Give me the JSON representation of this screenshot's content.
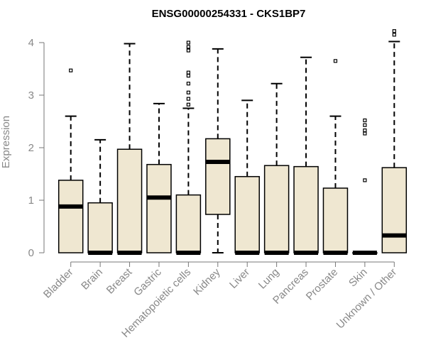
{
  "chart_data": {
    "type": "boxplot",
    "title": "ENSG00000254331 - CKS1BP7",
    "xlabel": "",
    "ylabel": "Expression",
    "ylim": [
      0,
      4.2
    ],
    "yticks": [
      0,
      1,
      2,
      3,
      4
    ],
    "grid": false,
    "legend": "none",
    "colors": {
      "box_fill": "#efe7d1",
      "stroke": "#000000",
      "axis": "#777777",
      "text": "#888888"
    },
    "categories": [
      "Bladder",
      "Brain",
      "Breast",
      "Gastric",
      "Hematopoietic cells",
      "Kidney",
      "Liver",
      "Lung",
      "Pancreas",
      "Prostate",
      "Skin",
      "Unknown / Other"
    ],
    "boxes": [
      {
        "category": "Bladder",
        "whisker_low": 0,
        "q1": 0,
        "median": 0.88,
        "q3": 1.38,
        "whisker_high": 2.6,
        "outliers": [
          3.47
        ]
      },
      {
        "category": "Brain",
        "whisker_low": 0,
        "q1": 0,
        "median": 0,
        "q3": 0.95,
        "whisker_high": 2.15,
        "outliers": []
      },
      {
        "category": "Breast",
        "whisker_low": 0,
        "q1": 0,
        "median": 0,
        "q3": 1.97,
        "whisker_high": 3.98,
        "outliers": []
      },
      {
        "category": "Gastric",
        "whisker_low": 0,
        "q1": 0,
        "median": 1.05,
        "q3": 1.68,
        "whisker_high": 2.84,
        "outliers": []
      },
      {
        "category": "Hematopoietic cells",
        "whisker_low": 0,
        "q1": 0,
        "median": 0,
        "q3": 1.1,
        "whisker_high": 2.75,
        "outliers": [
          2.82,
          2.93,
          3.05,
          3.22,
          3.37,
          3.43,
          3.85,
          3.92,
          4.0
        ]
      },
      {
        "category": "Kidney",
        "whisker_low": 0,
        "q1": 0.73,
        "median": 1.73,
        "q3": 2.17,
        "whisker_high": 3.88,
        "outliers": []
      },
      {
        "category": "Liver",
        "whisker_low": 0,
        "q1": 0,
        "median": 0,
        "q3": 1.45,
        "whisker_high": 2.9,
        "outliers": []
      },
      {
        "category": "Lung",
        "whisker_low": 0,
        "q1": 0,
        "median": 0,
        "q3": 1.66,
        "whisker_high": 3.22,
        "outliers": []
      },
      {
        "category": "Pancreas",
        "whisker_low": 0,
        "q1": 0,
        "median": 0,
        "q3": 1.64,
        "whisker_high": 3.72,
        "outliers": []
      },
      {
        "category": "Prostate",
        "whisker_low": 0,
        "q1": 0,
        "median": 0,
        "q3": 1.23,
        "whisker_high": 2.6,
        "outliers": [
          3.65
        ]
      },
      {
        "category": "Skin",
        "whisker_low": 0,
        "q1": 0,
        "median": 0,
        "q3": 0,
        "whisker_high": 0,
        "outliers": [
          1.38,
          2.27,
          2.33,
          2.43,
          2.52
        ]
      },
      {
        "category": "Unknown / Other",
        "whisker_low": 0,
        "q1": 0,
        "median": 0.33,
        "q3": 1.62,
        "whisker_high": 4.02,
        "outliers": [
          4.15,
          4.22
        ]
      }
    ]
  }
}
